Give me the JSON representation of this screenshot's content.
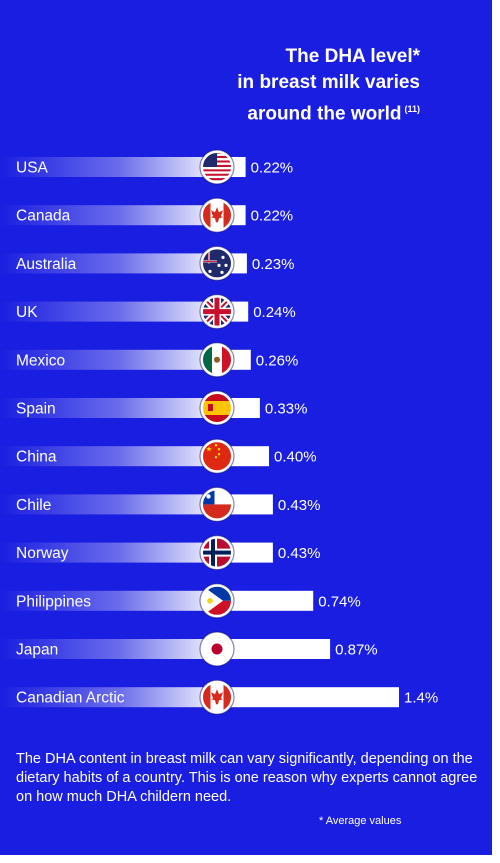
{
  "title": {
    "lines": [
      "The DHA level*",
      "in breast milk varies",
      "around the world"
    ],
    "ref": "(11)"
  },
  "chart_data": {
    "type": "bar",
    "orientation": "horizontal",
    "categories": [
      "USA",
      "Canada",
      "Australia",
      "UK",
      "Mexico",
      "Spain",
      "China",
      "Chile",
      "Norway",
      "Philippines",
      "Japan",
      "Canadian Arctic"
    ],
    "value_labels": [
      "0.22%",
      "0.22%",
      "0.23%",
      "0.24%",
      "0.26%",
      "0.33%",
      "0.40%",
      "0.43%",
      "0.43%",
      "0.74%",
      "0.87%",
      "1.4%"
    ],
    "values": [
      0.22,
      0.22,
      0.23,
      0.24,
      0.26,
      0.33,
      0.4,
      0.43,
      0.43,
      0.74,
      0.87,
      1.4
    ],
    "unit": "%",
    "flags": [
      "flag-usa-icon",
      "flag-canada-icon",
      "flag-australia-icon",
      "flag-uk-icon",
      "flag-mexico-icon",
      "flag-spain-icon",
      "flag-china-icon",
      "flag-chile-icon",
      "flag-norway-icon",
      "flag-philippines-icon",
      "flag-japan-icon",
      "flag-canada-icon"
    ]
  },
  "footnote": "The DHA content in breast milk can vary significantly, depending on the dietary habits of a country. This is one reason why experts cannot agree on how much DHA childern need.",
  "average_note": "* Average values",
  "colors": {
    "background": "#1a1ee0",
    "bar": "#ffffff",
    "text": "#ffffff"
  }
}
